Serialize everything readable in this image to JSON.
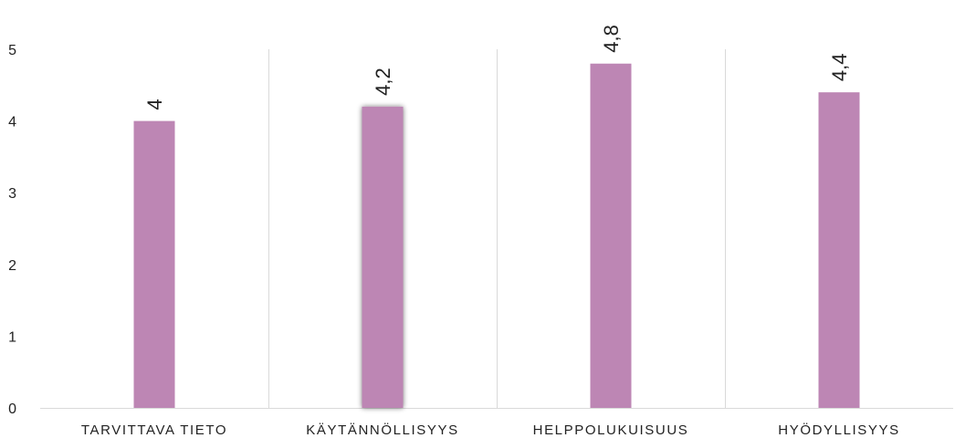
{
  "chart_data": {
    "type": "bar",
    "categories": [
      "TARVITTAVA TIETO",
      "KÄYTÄNNÖLLISYYS",
      "HELPPOLUKUISUUS",
      "HYÖDYLLISYYS"
    ],
    "values": [
      4,
      4.2,
      4.8,
      4.4
    ],
    "data_labels": [
      "4",
      "4,2",
      "4,8",
      "4,4"
    ],
    "y_ticks": [
      "0",
      "1",
      "2",
      "3",
      "4",
      "5"
    ],
    "ylim": [
      0,
      5
    ],
    "title": "",
    "xlabel": "",
    "ylabel": "",
    "grid": "vertical separators between categories",
    "legend": "none",
    "colors": {
      "bar": "#bd86b4",
      "separator": "#d9d9d9",
      "axis": "#d9d9d9",
      "text": "#222222"
    }
  }
}
